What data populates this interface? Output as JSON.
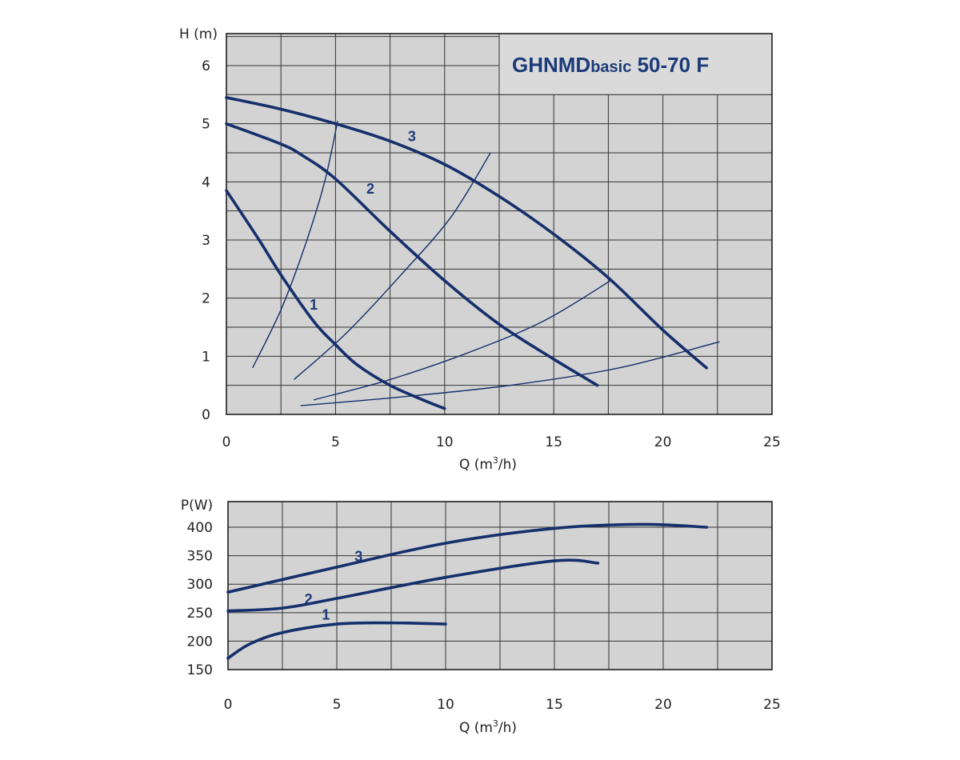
{
  "colors": {
    "plot_bg": "#d3d3d3",
    "grid": "#333333",
    "curve": "#142f6b",
    "title": "#1b3a78",
    "title_box": "#dadada"
  },
  "chart_data": [
    {
      "type": "line",
      "title": "GHNMD",
      "title_suffix": "basic",
      "title_model": " 50-70 F",
      "xlabel": "Q (m",
      "xlabel_sup": "3",
      "xlabel_end": "/h)",
      "ylabel": "H (m)",
      "xlim": [
        0,
        25
      ],
      "ylim": [
        0,
        6.55
      ],
      "xticks": [
        "0",
        "5",
        "10",
        "15",
        "20",
        "25"
      ],
      "xtick_values": [
        0,
        5,
        10,
        15,
        20,
        25
      ],
      "yticks": [
        "0",
        "1",
        "2",
        "3",
        "4",
        "5",
        "6"
      ],
      "ytick_values": [
        0,
        1,
        2,
        3,
        4,
        5,
        6
      ],
      "grid": {
        "x_step": 2.5,
        "y_step": 0.5
      },
      "series": [
        {
          "name": "1",
          "label_at": [
            4.0,
            1.8
          ],
          "x": [
            0,
            1.5,
            2.5,
            4,
            5,
            6,
            7.5,
            9,
            10
          ],
          "y": [
            3.85,
            3.0,
            2.4,
            1.6,
            1.2,
            0.85,
            0.5,
            0.25,
            0.1
          ]
        },
        {
          "name": "2",
          "label_at": [
            6.6,
            3.8
          ],
          "x": [
            0,
            2.5,
            3.5,
            5,
            7.5,
            10,
            12.5,
            15,
            17
          ],
          "y": [
            5.0,
            4.65,
            4.45,
            4.05,
            3.15,
            2.3,
            1.55,
            0.95,
            0.5
          ]
        },
        {
          "name": "3",
          "label_at": [
            8.5,
            4.7
          ],
          "x": [
            0,
            2.5,
            5,
            7.5,
            10,
            12.5,
            15,
            17.5,
            20,
            22
          ],
          "y": [
            5.45,
            5.25,
            5.0,
            4.7,
            4.3,
            3.75,
            3.1,
            2.35,
            1.45,
            0.8
          ]
        }
      ],
      "system_curves": [
        {
          "x": [
            1.2,
            2.5,
            3.6,
            4.5,
            5.1
          ],
          "y": [
            0.8,
            1.8,
            2.9,
            4.0,
            5.05
          ]
        },
        {
          "x": [
            3.1,
            5.5,
            8,
            10.3,
            12.1
          ],
          "y": [
            0.6,
            1.4,
            2.4,
            3.4,
            4.5
          ]
        },
        {
          "x": [
            4.0,
            7.5,
            11,
            14.5,
            17.6
          ],
          "y": [
            0.25,
            0.6,
            1.05,
            1.6,
            2.3
          ]
        },
        {
          "x": [
            3.4,
            8,
            13,
            18,
            22.6
          ],
          "y": [
            0.15,
            0.3,
            0.5,
            0.8,
            1.25
          ]
        }
      ]
    },
    {
      "type": "line",
      "xlabel": "Q (m",
      "xlabel_sup": "3",
      "xlabel_end": "/h)",
      "ylabel": "P(W)",
      "xlim": [
        0,
        25
      ],
      "ylim": [
        150,
        445
      ],
      "xticks": [
        "0",
        "5",
        "10",
        "15",
        "20",
        "25"
      ],
      "xtick_values": [
        0,
        5,
        10,
        15,
        20,
        25
      ],
      "yticks": [
        "150",
        "200",
        "250",
        "300",
        "350",
        "400"
      ],
      "ytick_values": [
        150,
        200,
        250,
        300,
        350,
        400
      ],
      "grid": {
        "x_step": 2.5,
        "y_step": 50
      },
      "series": [
        {
          "name": "1",
          "label_at": [
            4.5,
            238
          ],
          "x": [
            0,
            1,
            2.5,
            5,
            7.5,
            10
          ],
          "y": [
            170,
            195,
            215,
            230,
            232,
            230
          ]
        },
        {
          "name": "2",
          "label_at": [
            3.7,
            265
          ],
          "x": [
            0,
            2.5,
            5,
            10,
            15,
            17
          ],
          "y": [
            253,
            258,
            275,
            312,
            341,
            337
          ]
        },
        {
          "name": "3",
          "label_at": [
            6.0,
            340
          ],
          "x": [
            0,
            5,
            10,
            15,
            19,
            22
          ],
          "y": [
            286,
            330,
            372,
            398,
            405,
            400
          ]
        }
      ]
    }
  ]
}
